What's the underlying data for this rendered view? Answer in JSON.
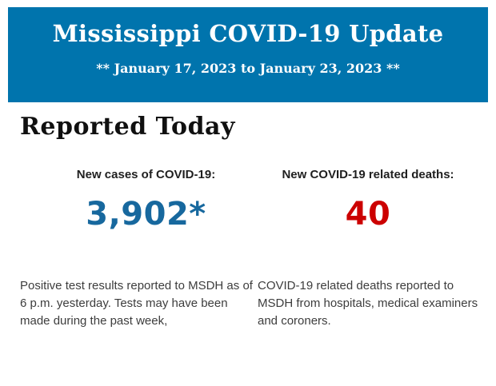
{
  "banner": {
    "title": "Mississippi COVID-19 Update",
    "date_range": "** January 17, 2023 to January 23, 2023 **",
    "background_color": "#0074ad",
    "text_color": "#ffffff"
  },
  "report": {
    "heading": "Reported Today",
    "cases": {
      "label": "New cases of COVID-19:",
      "value": "3,902*",
      "value_color": "#17689e",
      "description": "Positive test results reported to MSDH as of 6 p.m. yesterday. Tests may have been made during the past week,"
    },
    "deaths": {
      "label": "New COVID-19 related deaths:",
      "value": "40",
      "value_color": "#cc0000",
      "description": "COVID-19 related deaths reported to MSDH from hospitals, medical examiners and coroners."
    }
  }
}
